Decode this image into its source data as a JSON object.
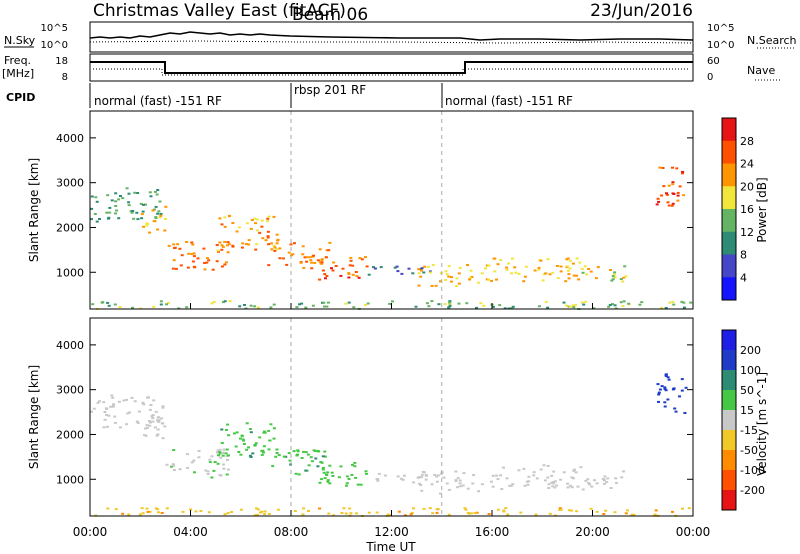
{
  "header": {
    "station": "Christmas Valley East (fitACF)",
    "beam": "Beam 06",
    "date": "23/Jun/2016"
  },
  "strips": {
    "nsky_label": "N.Sky",
    "nsearch_label": "N.Search",
    "noise_ticks": [
      "10^5",
      "10^0"
    ],
    "freq_label_1": "Freq.",
    "freq_label_2": "[MHz]",
    "freq_ticks": [
      "18",
      "8"
    ],
    "nave_label": "Nave",
    "nave_ticks": [
      "60",
      "0"
    ],
    "cpid_label": "CPID",
    "cpid_segments": [
      {
        "label": "normal (fast) -151 RF",
        "start_hour": 0
      },
      {
        "label": "rbsp 201 RF",
        "start_hour": 8
      },
      {
        "label": "normal (fast) -151 RF",
        "start_hour": 14
      }
    ]
  },
  "axes": {
    "y_label": "Slant Range [km]",
    "x_label": "Time UT",
    "y_ticks": [
      "1000",
      "2000",
      "3000",
      "4000"
    ],
    "x_ticks": [
      "00:00",
      "04:00",
      "08:00",
      "12:00",
      "16:00",
      "20:00",
      "00:00"
    ]
  },
  "power_scale": {
    "label": "Power [dB]",
    "ticks": [
      "4",
      "8",
      "12",
      "16",
      "20",
      "24",
      "28"
    ],
    "colors": [
      "#1414ff",
      "#4646c8",
      "#2d8c73",
      "#64b464",
      "#f0e63c",
      "#ff9600",
      "#ff5000",
      "#e61414"
    ]
  },
  "velocity_scale": {
    "label": "Velocity [m s^-1]",
    "ticks": [
      "200",
      "100",
      "50",
      "15",
      "-15",
      "-50",
      "-100",
      "-200"
    ],
    "colors": [
      "#1e1ee6",
      "#1e3cc8",
      "#2d8c73",
      "#46c846",
      "#c8c8c8",
      "#f0c828",
      "#ff8c00",
      "#ff5000",
      "#e61414"
    ]
  },
  "chart_data": [
    {
      "type": "heatmap",
      "title": "",
      "xlabel": "Time UT",
      "ylabel": "Slant Range [km]",
      "value_label": "Power [dB]",
      "xlim": [
        0,
        24
      ],
      "ylim": [
        180,
        4600
      ],
      "regions": [
        {
          "t_start": 0.0,
          "t_end": 2.9,
          "r_low": 2150,
          "r_high": 2900,
          "power": 12
        },
        {
          "t_start": 2.0,
          "t_end": 3.0,
          "r_low": 1900,
          "r_high": 2500,
          "power": 20
        },
        {
          "t_start": 3.0,
          "t_end": 5.5,
          "r_low": 1050,
          "r_high": 1700,
          "power": 24
        },
        {
          "t_start": 5.0,
          "t_end": 7.5,
          "r_low": 1500,
          "r_high": 2300,
          "power": 22
        },
        {
          "t_start": 7.0,
          "t_end": 9.5,
          "r_low": 1100,
          "r_high": 1700,
          "power": 24
        },
        {
          "t_start": 9.0,
          "t_end": 11.0,
          "r_low": 850,
          "r_high": 1400,
          "power": 26
        },
        {
          "t_start": 11.0,
          "t_end": 13.5,
          "r_low": 950,
          "r_high": 1150,
          "power": 8
        },
        {
          "t_start": 13.0,
          "t_end": 16.0,
          "r_low": 700,
          "r_high": 1200,
          "power": 20
        },
        {
          "t_start": 16.0,
          "t_end": 19.5,
          "r_low": 800,
          "r_high": 1350,
          "power": 20
        },
        {
          "t_start": 19.5,
          "t_end": 21.3,
          "r_low": 750,
          "r_high": 1200,
          "power": 18
        },
        {
          "t_start": 22.5,
          "t_end": 23.7,
          "r_low": 2500,
          "r_high": 3400,
          "power": 26
        },
        {
          "t_start": 0.0,
          "t_end": 24.0,
          "r_low": 200,
          "r_high": 380,
          "power": 14
        }
      ]
    },
    {
      "type": "heatmap",
      "title": "",
      "xlabel": "Time UT",
      "ylabel": "Slant Range [km]",
      "value_label": "Velocity [m s^-1]",
      "xlim": [
        0,
        24
      ],
      "ylim": [
        180,
        4600
      ],
      "regions": [
        {
          "t_start": 0.0,
          "t_end": 2.9,
          "r_low": 2150,
          "r_high": 2900,
          "velocity": 0
        },
        {
          "t_start": 2.0,
          "t_end": 3.0,
          "r_low": 1900,
          "r_high": 2500,
          "velocity": 0
        },
        {
          "t_start": 3.0,
          "t_end": 5.5,
          "r_low": 1050,
          "r_high": 1700,
          "velocity": 5
        },
        {
          "t_start": 5.0,
          "t_end": 7.5,
          "r_low": 1500,
          "r_high": 2300,
          "velocity": 40
        },
        {
          "t_start": 7.0,
          "t_end": 9.5,
          "r_low": 1100,
          "r_high": 1700,
          "velocity": 40
        },
        {
          "t_start": 9.0,
          "t_end": 11.0,
          "r_low": 850,
          "r_high": 1400,
          "velocity": 30
        },
        {
          "t_start": 11.0,
          "t_end": 13.5,
          "r_low": 950,
          "r_high": 1150,
          "velocity": 0
        },
        {
          "t_start": 13.0,
          "t_end": 16.0,
          "r_low": 700,
          "r_high": 1200,
          "velocity": 0
        },
        {
          "t_start": 16.0,
          "t_end": 19.5,
          "r_low": 800,
          "r_high": 1350,
          "velocity": 0
        },
        {
          "t_start": 19.5,
          "t_end": 21.3,
          "r_low": 750,
          "r_high": 1200,
          "velocity": 0
        },
        {
          "t_start": 22.5,
          "t_end": 23.7,
          "r_low": 2500,
          "r_high": 3400,
          "velocity": 180
        },
        {
          "t_start": 0.0,
          "t_end": 24.0,
          "r_low": 200,
          "r_high": 380,
          "velocity": -40
        }
      ]
    }
  ]
}
